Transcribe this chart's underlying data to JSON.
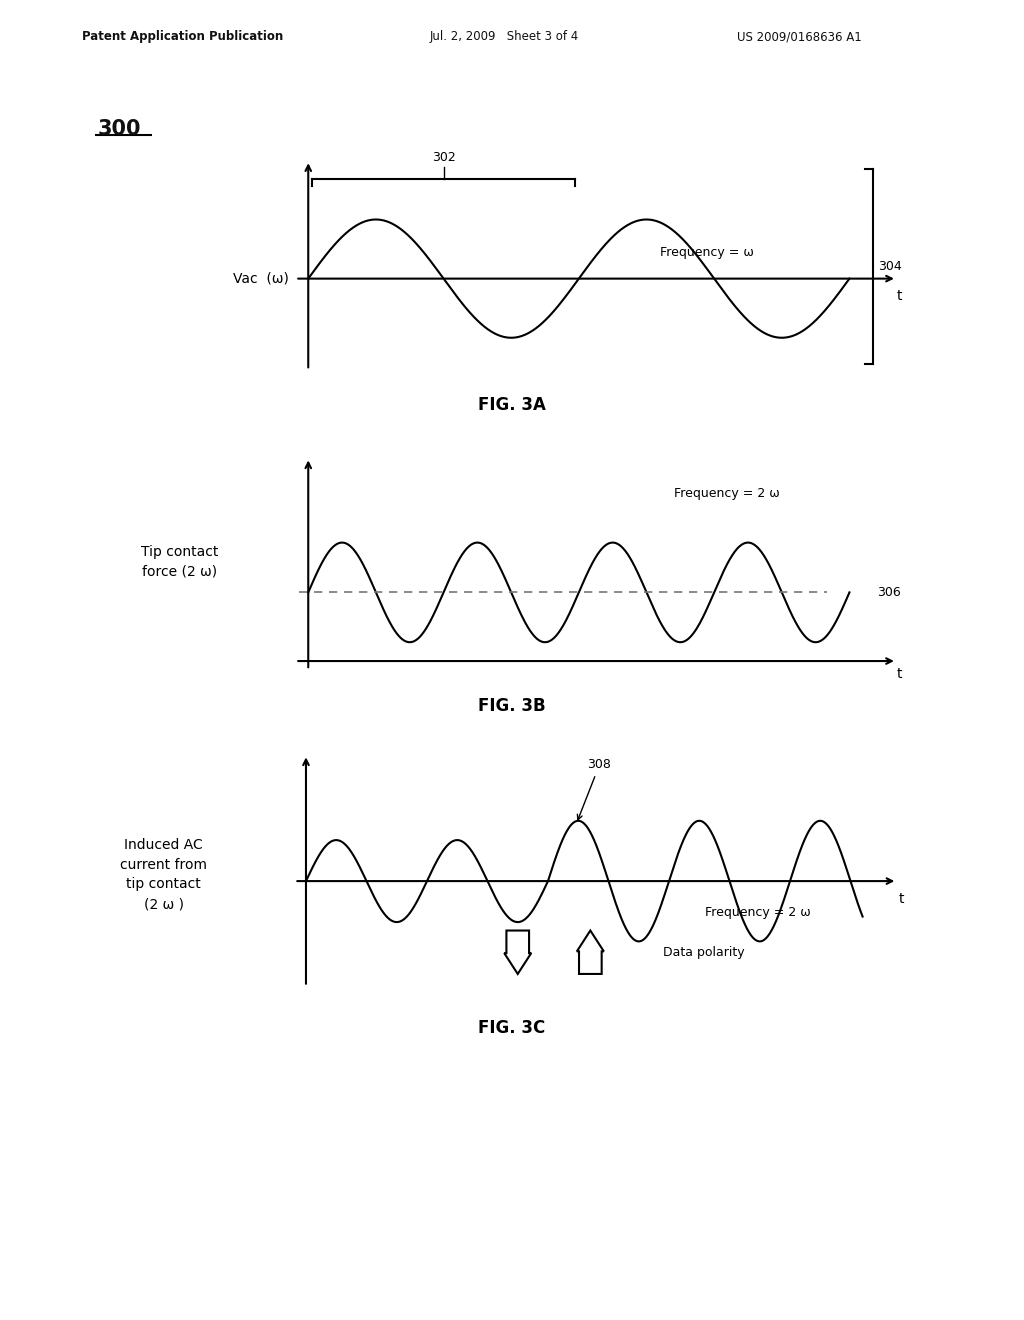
{
  "bg_color": "#ffffff",
  "header_left": "Patent Application Publication",
  "header_mid": "Jul. 2, 2009   Sheet 3 of 4",
  "header_right": "US 2009/0168636 A1",
  "label_300": "300",
  "fig3a_label": "FIG. 3A",
  "fig3b_label": "FIG. 3B",
  "fig3c_label": "FIG. 3C",
  "fig3a_ylabel": "Vac  (ω)",
  "fig3a_xlabel": "t",
  "fig3a_freq_text": "Frequency = ω",
  "fig3a_brace_label": "302",
  "fig3a_bracket_label": "304",
  "fig3b_ylabel1": "Tip contact",
  "fig3b_ylabel2": "force (2 ω)",
  "fig3b_xlabel": "t",
  "fig3b_freq_text": "Frequency = 2 ω",
  "fig3b_dashed_label": "306",
  "fig3c_ylabel1": "Induced AC",
  "fig3c_ylabel2": "current from",
  "fig3c_ylabel3": "tip contact",
  "fig3c_ylabel4": "(2 ω )",
  "fig3c_xlabel": "t",
  "fig3c_freq_text": "Frequency = 2 ω",
  "fig3c_arrow_label": "308",
  "fig3c_polarity_text": "Data polarity",
  "line_color": "#000000",
  "dashed_color": "#777777"
}
